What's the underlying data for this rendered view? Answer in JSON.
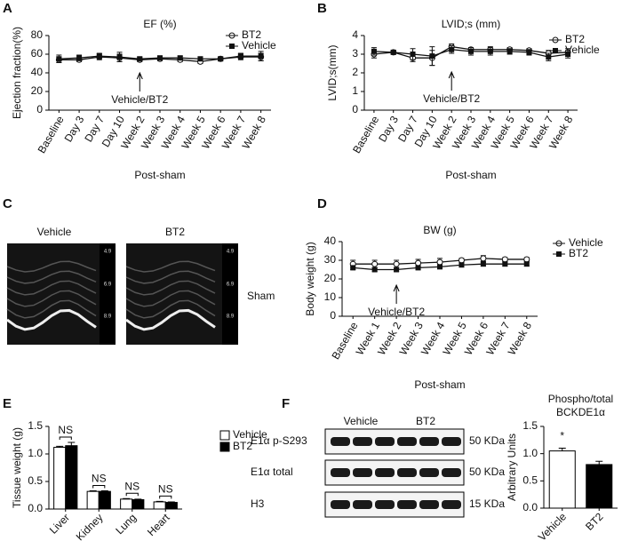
{
  "panel_labels": [
    "A",
    "B",
    "C",
    "D",
    "E",
    "F"
  ],
  "chart_data": [
    {
      "type": "line",
      "title": "EF (%)",
      "y_label": "Ejection fraction(%)",
      "x_label": "Post-sham",
      "categories": [
        "Baseline",
        "Day 3",
        "Day 7",
        "Day 10",
        "Week 2",
        "Week 3",
        "Week 4",
        "Week 5",
        "Week 6",
        "Week 7",
        "Week 8"
      ],
      "series": [
        {
          "name": "BT2",
          "color": "#111111",
          "marker": "open-circle",
          "values": [
            54,
            54,
            57,
            56,
            54,
            55,
            54,
            52,
            55,
            57,
            57
          ],
          "errors": [
            3,
            2,
            3,
            4,
            2,
            2,
            2,
            2,
            2,
            3,
            4
          ]
        },
        {
          "name": "Vehicle",
          "color": "#111111",
          "marker": "square",
          "values": [
            55,
            56,
            58,
            57,
            55,
            56,
            56,
            55,
            55,
            58,
            58
          ],
          "errors": [
            4,
            3,
            3,
            5,
            2,
            2,
            2,
            2,
            2,
            3,
            5
          ]
        }
      ],
      "ylim": [
        0,
        80
      ],
      "yticks": [
        0,
        20,
        40,
        60,
        80
      ],
      "annotation": "Vehicle/BT2"
    },
    {
      "type": "line",
      "title": "LVID;s (mm)",
      "y_label": "LVID;s(mm)",
      "x_label": "Post-sham",
      "categories": [
        "Baseline",
        "Day 3",
        "Day 7",
        "Day 10",
        "Week 2",
        "Week 3",
        "Week 4",
        "Week 5",
        "Week 6",
        "Week 7",
        "Week 8"
      ],
      "series": [
        {
          "name": "BT2",
          "color": "#111111",
          "marker": "open-circle",
          "values": [
            3.0,
            3.1,
            2.8,
            2.8,
            3.4,
            3.25,
            3.25,
            3.25,
            3.2,
            3.05,
            3.1
          ],
          "errors": [
            0.2,
            0.1,
            0.2,
            0.4,
            0.15,
            0.1,
            0.15,
            0.1,
            0.1,
            0.15,
            0.2
          ]
        },
        {
          "name": "Vehicle",
          "color": "#111111",
          "marker": "square",
          "values": [
            3.15,
            3.1,
            3.0,
            2.9,
            3.25,
            3.15,
            3.15,
            3.15,
            3.1,
            2.85,
            3.0
          ],
          "errors": [
            0.2,
            0.1,
            0.3,
            0.5,
            0.2,
            0.2,
            0.2,
            0.15,
            0.15,
            0.2,
            0.2
          ]
        }
      ],
      "ylim": [
        0,
        4
      ],
      "yticks": [
        0,
        1,
        2,
        3,
        4
      ],
      "annotation": "Vehicle/BT2"
    },
    {
      "type": "line",
      "title": "BW (g)",
      "y_label": "Body weight (g)",
      "x_label": "Post-sham",
      "categories": [
        "Baseline",
        "Week 1",
        "Week 2",
        "Week 3",
        "Week 4",
        "Week 5",
        "Week 6",
        "Week 7",
        "Week 8"
      ],
      "series": [
        {
          "name": "Vehicle",
          "color": "#111111",
          "marker": "open-circle",
          "values": [
            28,
            28,
            28,
            28.5,
            29,
            30,
            31,
            30.5,
            30.5
          ],
          "errors": [
            2,
            2,
            2,
            2,
            2,
            1,
            1.5,
            1,
            1
          ]
        },
        {
          "name": "BT2",
          "color": "#111111",
          "marker": "square",
          "values": [
            26,
            25,
            25,
            26,
            26.5,
            27.5,
            28,
            28,
            28
          ],
          "errors": [
            1,
            1,
            1,
            1,
            1,
            1,
            1,
            1,
            1
          ]
        }
      ],
      "ylim": [
        0,
        40
      ],
      "yticks": [
        0,
        10,
        20,
        30,
        40
      ],
      "annotation": "Vehicle/BT2"
    },
    {
      "type": "bar",
      "y_label": "Tissue weight (g)",
      "categories": [
        "Liver",
        "Kidney",
        "Lung",
        "Heart"
      ],
      "series": [
        {
          "name": "Vehicle",
          "color": "#ffffff",
          "values": [
            1.12,
            0.32,
            0.18,
            0.13
          ],
          "errors": [
            0.02,
            0.01,
            0.01,
            0.01
          ]
        },
        {
          "name": "BT2",
          "color": "#000000",
          "values": [
            1.15,
            0.32,
            0.17,
            0.12
          ],
          "errors": [
            0.06,
            0.01,
            0.01,
            0.01
          ]
        }
      ],
      "ylim": [
        0,
        1.5
      ],
      "yticks": [
        {
          "value": 0,
          "label": "0.0"
        },
        {
          "value": 0.5,
          "label": "0.5"
        },
        {
          "value": 1,
          "label": "1.0"
        },
        {
          "value": 1.5,
          "label": "1.5"
        }
      ],
      "annotations": [
        "NS",
        "NS",
        "NS",
        "NS"
      ]
    },
    {
      "type": "bar",
      "title": [
        "Phospho/total",
        "BCKDE1α"
      ],
      "y_label": "Arbitrary Units",
      "categories": [
        "Vehicle",
        "BT2"
      ],
      "series": [
        {
          "colors": [
            "#ffffff",
            "#000000"
          ],
          "values": [
            1.05,
            0.8
          ],
          "errors": [
            0.05,
            0.06
          ]
        }
      ],
      "ylim": [
        0,
        1.5
      ],
      "yticks": [
        {
          "value": 0,
          "label": "0.0"
        },
        {
          "value": 0.5,
          "label": "0.5"
        },
        {
          "value": 1,
          "label": "1.0"
        },
        {
          "value": 1.5,
          "label": "1.5"
        }
      ],
      "annotations": [
        "*"
      ]
    }
  ],
  "echo": {
    "labels": [
      "Vehicle",
      "BT2"
    ],
    "side_label": "Sham",
    "depth_marks": [
      "4.9",
      "6.9",
      "8.9"
    ]
  },
  "blot": {
    "groups": [
      "Vehicle",
      "BT2"
    ],
    "rows": [
      {
        "label": "E1α p-S293",
        "size": "50 KDa"
      },
      {
        "label": "E1α total",
        "size": "50 KDa"
      },
      {
        "label": "H3",
        "size": "15 KDa"
      }
    ]
  }
}
